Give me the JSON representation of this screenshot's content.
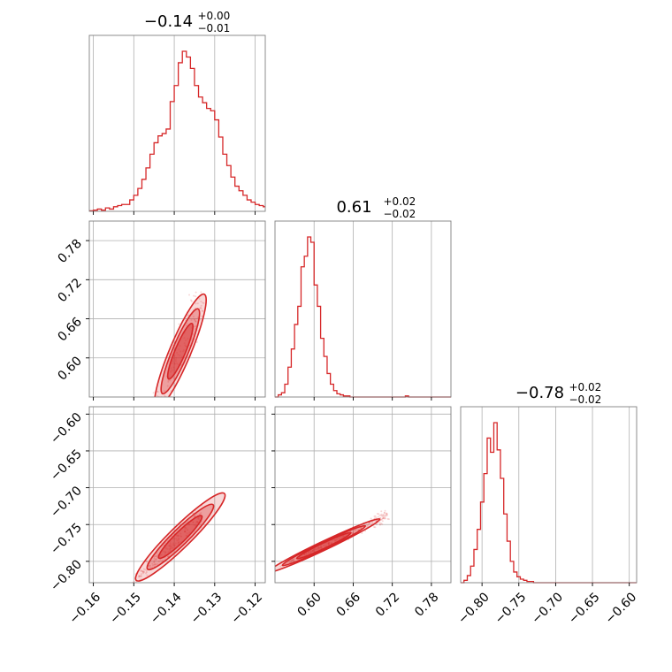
{
  "chart_data": {
    "type": "corner",
    "color": "#d62728",
    "parameters": [
      {
        "title": {
          "value": "−0.14",
          "upper": "+0.00",
          "lower": "−0.01"
        },
        "range": [
          -0.161,
          -0.1175
        ],
        "ticks": [
          -0.16,
          -0.15,
          -0.14,
          -0.13,
          -0.12
        ],
        "tick_labels": [
          "−0.16",
          "−0.15",
          "−0.14",
          "−0.13",
          "−0.12"
        ],
        "histogram": {
          "bin_edges_start": -0.161,
          "bin_width": 0.001,
          "counts": [
            0.5,
            1,
            2,
            1,
            3,
            2,
            4,
            5,
            6,
            6,
            10,
            14,
            20,
            28,
            38,
            50,
            60,
            66,
            68,
            72,
            96,
            110,
            130,
            140,
            135,
            125,
            110,
            100,
            95,
            90,
            88,
            80,
            65,
            50,
            40,
            30,
            22,
            18,
            14,
            10,
            8,
            6,
            5,
            4,
            3,
            2,
            2,
            1,
            1,
            1,
            1,
            0,
            0,
            0
          ]
        }
      },
      {
        "title": {
          "value": "0.61",
          "upper": "+0.02",
          "lower": "−0.02"
        },
        "range": [
          0.54,
          0.81
        ],
        "ticks": [
          0.6,
          0.66,
          0.72,
          0.78
        ],
        "tick_labels": [
          "0.60",
          "0.66",
          "0.72",
          "0.78"
        ],
        "histogram": {
          "bin_edges_start": 0.54,
          "bin_width": 0.005,
          "counts": [
            0,
            2,
            4,
            12,
            28,
            45,
            68,
            85,
            122,
            132,
            150,
            145,
            105,
            85,
            55,
            38,
            22,
            12,
            6,
            3,
            2,
            1,
            1,
            0,
            0,
            0,
            0,
            0,
            0,
            0,
            0,
            0,
            0,
            0,
            0,
            0,
            0,
            0,
            0,
            0,
            1,
            0,
            0,
            0,
            0,
            0,
            0,
            0,
            0,
            0,
            0,
            0,
            0,
            0
          ]
        }
      },
      {
        "title": {
          "value": "−0.78",
          "upper": "+0.02",
          "lower": "−0.02"
        },
        "range": [
          -0.829,
          -0.59
        ],
        "ticks": [
          -0.8,
          -0.75,
          -0.7,
          -0.65,
          -0.6
        ],
        "tick_labels": [
          "−0.80",
          "−0.75",
          "−0.70",
          "−0.65",
          "−0.60"
        ],
        "histogram": {
          "bin_edges_start": -0.829,
          "bin_width": 0.0045,
          "counts": [
            0,
            2,
            6,
            14,
            28,
            45,
            68,
            92,
            122,
            110,
            135,
            112,
            88,
            58,
            35,
            18,
            9,
            5,
            3,
            2,
            1,
            1,
            0,
            0,
            0,
            0,
            0,
            0,
            0,
            0,
            0,
            0,
            0,
            0,
            0,
            0,
            0,
            0,
            0,
            0,
            0,
            0,
            0,
            0,
            0,
            0,
            0,
            0,
            0,
            0,
            0,
            0,
            0,
            0
          ]
        }
      }
    ],
    "correlations": [
      {
        "row": 1,
        "col": 0,
        "slope": 14.8,
        "intercept": 2.66
      },
      {
        "row": 2,
        "col": 0,
        "slope": 5.4,
        "intercept": -0.019
      },
      {
        "row": 2,
        "col": 1,
        "slope": 0.42,
        "intercept": -1.037
      }
    ],
    "grid": true
  }
}
